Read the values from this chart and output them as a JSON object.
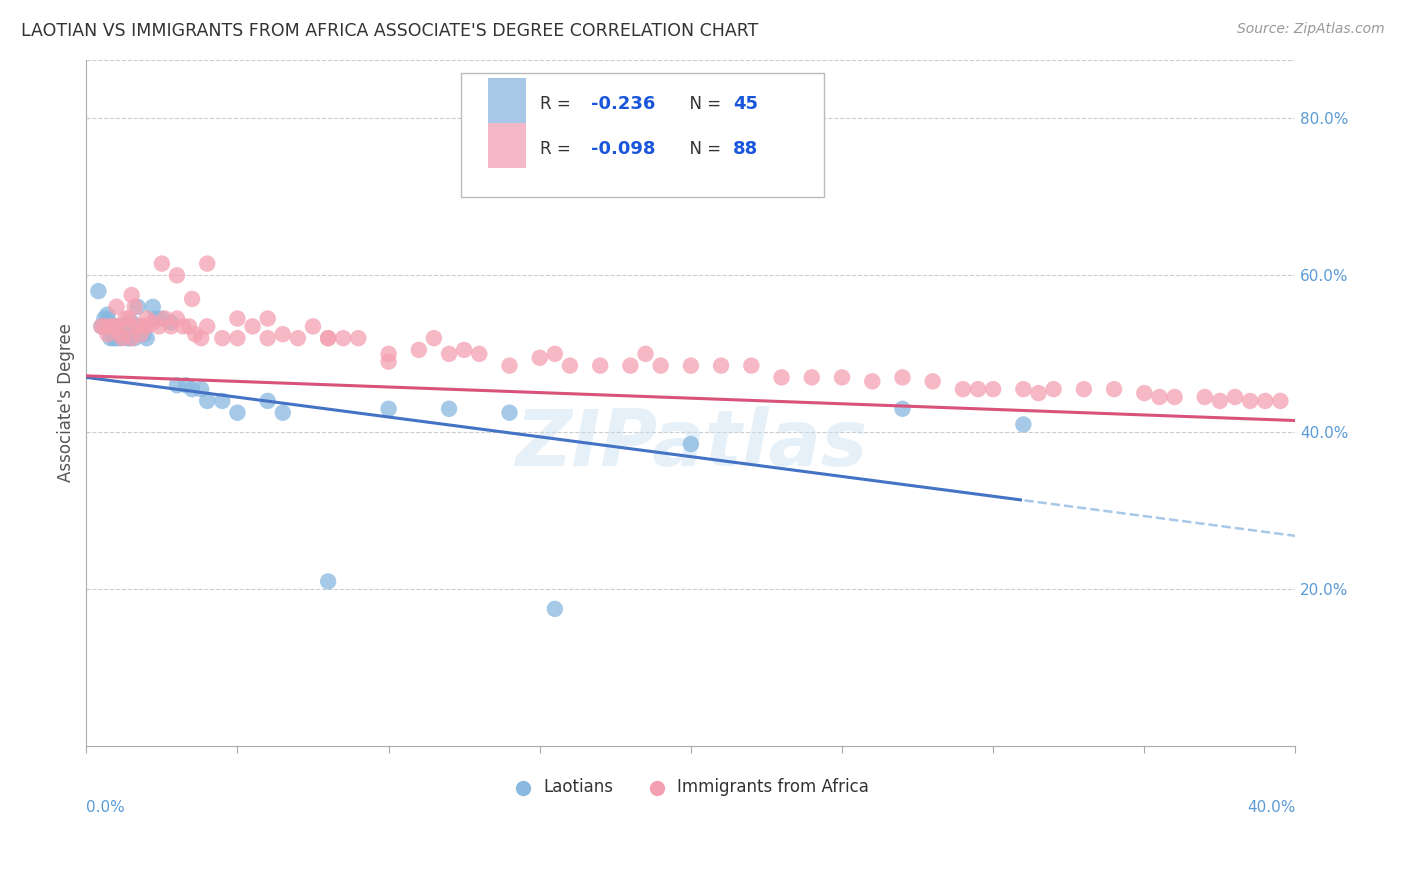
{
  "title": "LAOTIAN VS IMMIGRANTS FROM AFRICA ASSOCIATE'S DEGREE CORRELATION CHART",
  "source": "Source: ZipAtlas.com",
  "ylabel": "Associate's Degree",
  "watermark": "ZIPatlas",
  "series1_color": "#89b8e0",
  "series2_color": "#f4a0b0",
  "series1_name": "Laotians",
  "series2_name": "Immigrants from Africa",
  "trend1_color": "#4472c4",
  "trend2_color": "#d9527a",
  "trend1_dashed_color": "#a8c8e8",
  "xlim": [
    0.0,
    0.4
  ],
  "ylim": [
    0.0,
    0.875
  ],
  "legend_R1": "-0.236",
  "legend_N1": "45",
  "legend_R2": "-0.098",
  "legend_N2": "88",
  "legend_color_R": "#1a56db",
  "legend_color_N": "#1a56db",
  "right_ytick_vals": [
    0.2,
    0.4,
    0.6,
    0.8
  ],
  "right_ytick_labels": [
    "20.0%",
    "40.0%",
    "60.0%",
    "80.0%"
  ],
  "series1_x": [
    0.004,
    0.005,
    0.006,
    0.007,
    0.007,
    0.008,
    0.008,
    0.009,
    0.009,
    0.01,
    0.01,
    0.011,
    0.011,
    0.012,
    0.012,
    0.013,
    0.014,
    0.014,
    0.015,
    0.016,
    0.017,
    0.018,
    0.019,
    0.02,
    0.022,
    0.023,
    0.025,
    0.028,
    0.03,
    0.033,
    0.035,
    0.038,
    0.04,
    0.045,
    0.05,
    0.06,
    0.065,
    0.08,
    0.1,
    0.12,
    0.14,
    0.155,
    0.2,
    0.27,
    0.31
  ],
  "series1_y": [
    0.58,
    0.535,
    0.545,
    0.545,
    0.55,
    0.52,
    0.535,
    0.52,
    0.535,
    0.52,
    0.535,
    0.52,
    0.535,
    0.525,
    0.535,
    0.535,
    0.52,
    0.52,
    0.54,
    0.52,
    0.56,
    0.535,
    0.525,
    0.52,
    0.56,
    0.545,
    0.545,
    0.54,
    0.46,
    0.46,
    0.455,
    0.455,
    0.44,
    0.44,
    0.425,
    0.44,
    0.425,
    0.21,
    0.43,
    0.43,
    0.425,
    0.175,
    0.385,
    0.43,
    0.41
  ],
  "series2_x": [
    0.005,
    0.006,
    0.007,
    0.008,
    0.009,
    0.01,
    0.011,
    0.012,
    0.013,
    0.014,
    0.014,
    0.015,
    0.016,
    0.017,
    0.018,
    0.019,
    0.02,
    0.022,
    0.024,
    0.026,
    0.028,
    0.03,
    0.032,
    0.034,
    0.036,
    0.038,
    0.04,
    0.045,
    0.05,
    0.055,
    0.06,
    0.065,
    0.07,
    0.075,
    0.08,
    0.085,
    0.09,
    0.1,
    0.11,
    0.115,
    0.12,
    0.125,
    0.13,
    0.14,
    0.15,
    0.155,
    0.16,
    0.17,
    0.18,
    0.185,
    0.19,
    0.2,
    0.21,
    0.22,
    0.23,
    0.24,
    0.25,
    0.26,
    0.27,
    0.28,
    0.29,
    0.295,
    0.3,
    0.31,
    0.315,
    0.32,
    0.33,
    0.34,
    0.35,
    0.355,
    0.36,
    0.37,
    0.375,
    0.38,
    0.385,
    0.39,
    0.395,
    0.01,
    0.015,
    0.02,
    0.025,
    0.03,
    0.035,
    0.04,
    0.05,
    0.06,
    0.08,
    0.1
  ],
  "series2_y": [
    0.535,
    0.535,
    0.525,
    0.535,
    0.535,
    0.535,
    0.525,
    0.52,
    0.545,
    0.535,
    0.545,
    0.52,
    0.56,
    0.535,
    0.525,
    0.535,
    0.535,
    0.54,
    0.535,
    0.545,
    0.535,
    0.545,
    0.535,
    0.535,
    0.525,
    0.52,
    0.535,
    0.52,
    0.52,
    0.535,
    0.52,
    0.525,
    0.52,
    0.535,
    0.52,
    0.52,
    0.52,
    0.5,
    0.505,
    0.52,
    0.5,
    0.505,
    0.5,
    0.485,
    0.495,
    0.5,
    0.485,
    0.485,
    0.485,
    0.5,
    0.485,
    0.485,
    0.485,
    0.485,
    0.47,
    0.47,
    0.47,
    0.465,
    0.47,
    0.465,
    0.455,
    0.455,
    0.455,
    0.455,
    0.45,
    0.455,
    0.455,
    0.455,
    0.45,
    0.445,
    0.445,
    0.445,
    0.44,
    0.445,
    0.44,
    0.44,
    0.44,
    0.56,
    0.575,
    0.545,
    0.615,
    0.6,
    0.57,
    0.615,
    0.545,
    0.545,
    0.52,
    0.49
  ]
}
